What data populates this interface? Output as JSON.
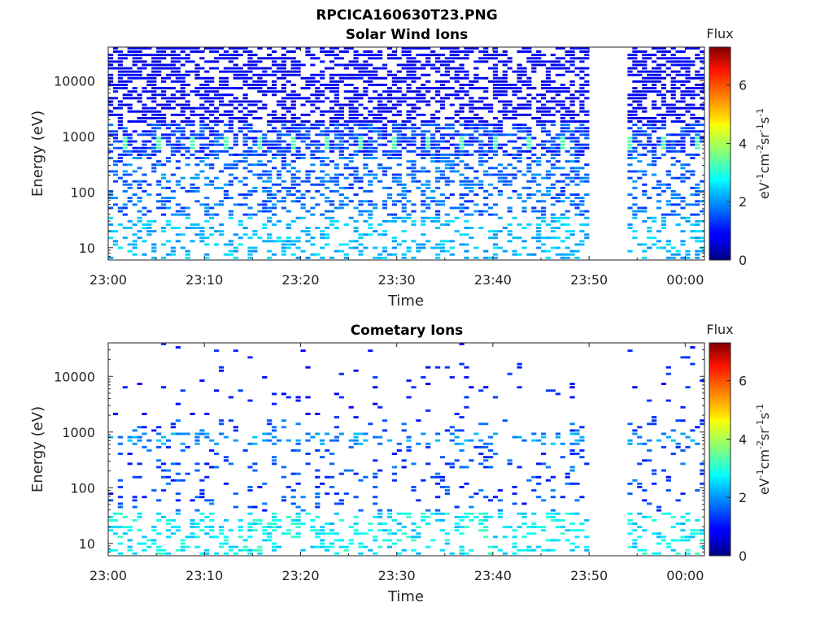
{
  "figure": {
    "title": "RPCICA160630T23.PNG"
  },
  "colorbar": {
    "title": "Flux",
    "units_html": "eV⁻¹cm⁻²sr⁻¹s⁻¹",
    "min": 0,
    "max": 7.3,
    "ticks": [
      "0",
      "2",
      "4",
      "6"
    ],
    "colormap": "jet"
  },
  "chart_data": [
    {
      "type": "heatmap",
      "title": "Solar Wind Ions",
      "xlabel": "Time",
      "ylabel": "Energy (eV)",
      "xlim": [
        "23:00",
        "00:02"
      ],
      "ylim": [
        6,
        40000
      ],
      "yscale": "log",
      "xticks": [
        "23:00",
        "23:10",
        "23:20",
        "23:30",
        "23:40",
        "23:50",
        "00:00"
      ],
      "yticks": [
        "10",
        "100",
        "1000",
        "10000"
      ],
      "data_gap": [
        "23:50",
        "23:54"
      ],
      "value_range": [
        0,
        7.3
      ],
      "dominant_features": [
        {
          "energy_eV": 700,
          "flux": 3.3,
          "note": "periodic green patches near 700 eV"
        },
        {
          "energy_eV_range": [
            1500,
            40000
          ],
          "flux": 0.8,
          "note": "dense dark-blue background"
        },
        {
          "energy_eV_range": [
            6,
            30
          ],
          "flux": 2.2,
          "note": "light-blue patches at low energy"
        }
      ]
    },
    {
      "type": "heatmap",
      "title": "Cometary Ions",
      "xlabel": "Time",
      "ylabel": "Energy (eV)",
      "xlim": [
        "23:00",
        "00:02"
      ],
      "ylim": [
        6,
        40000
      ],
      "yscale": "log",
      "xticks": [
        "23:00",
        "23:10",
        "23:20",
        "23:30",
        "23:40",
        "23:50",
        "00:00"
      ],
      "yticks": [
        "10",
        "100",
        "1000",
        "10000"
      ],
      "data_gap": [
        "23:50",
        "23:54"
      ],
      "value_range": [
        0,
        7.3
      ],
      "dominant_features": [
        {
          "energy_eV": 700,
          "flux": 2.3,
          "note": "row of cyan marks near 700 eV"
        },
        {
          "energy_eV_range": [
            40,
            400
          ],
          "flux": 1.2,
          "note": "scattered blue marks"
        },
        {
          "energy_eV_range": [
            6,
            20
          ],
          "flux": 3.0,
          "note": "green/cyan patches at low energy"
        }
      ]
    }
  ]
}
